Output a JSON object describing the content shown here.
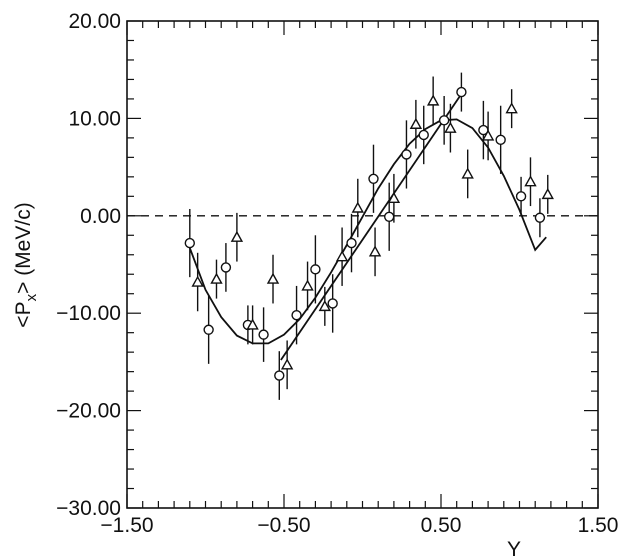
{
  "chart_data": {
    "type": "scatter",
    "title": "",
    "xlabel": "Y",
    "ylabel": "<P",
    "ylabel_sub": "x",
    "ylabel_tail": "> (MeV/c)",
    "xlim": [
      -1.5,
      1.5
    ],
    "ylim": [
      -30,
      20
    ],
    "x_ticks": [
      -1.5,
      -0.5,
      0.5,
      1.5
    ],
    "x_tick_labels": [
      "-1.50",
      "-0.50",
      "0.50",
      "1.50"
    ],
    "y_ticks": [
      -30,
      -20,
      -10,
      0,
      10,
      20
    ],
    "y_tick_labels": [
      "-30.00",
      "-20.00",
      "-10.00",
      "0.00",
      "10.00",
      "20.00"
    ],
    "x_minor_step": 0.1,
    "y_minor_step": 2,
    "reference_line": {
      "y": 0,
      "style": "dashed"
    },
    "grid": false,
    "series": [
      {
        "marker": "circle",
        "points": [
          {
            "x": -1.1,
            "y": -2.8,
            "err": 3.5
          },
          {
            "x": -0.98,
            "y": -11.7,
            "err": 3.5
          },
          {
            "x": -0.87,
            "y": -5.3,
            "err": 2.5
          },
          {
            "x": -0.73,
            "y": -11.2,
            "err": 2.0
          },
          {
            "x": -0.63,
            "y": -12.2,
            "err": 2.8
          },
          {
            "x": -0.53,
            "y": -16.4,
            "err": 2.5
          },
          {
            "x": -0.42,
            "y": -10.2,
            "err": 3.0
          },
          {
            "x": -0.3,
            "y": -5.5,
            "err": 3.5
          },
          {
            "x": -0.19,
            "y": -9.0,
            "err": 3.0
          },
          {
            "x": -0.07,
            "y": -2.8,
            "err": 3.0
          },
          {
            "x": 0.07,
            "y": 3.8,
            "err": 3.5
          },
          {
            "x": 0.17,
            "y": -0.1,
            "err": 3.5
          },
          {
            "x": 0.28,
            "y": 6.3,
            "err": 3.5
          },
          {
            "x": 0.39,
            "y": 8.3,
            "err": 3.0
          },
          {
            "x": 0.52,
            "y": 9.8,
            "err": 2.5
          },
          {
            "x": 0.63,
            "y": 12.7,
            "err": 2.0
          },
          {
            "x": 0.77,
            "y": 8.8,
            "err": 3.0
          },
          {
            "x": 0.88,
            "y": 7.8,
            "err": 3.5
          },
          {
            "x": 1.01,
            "y": 2.0,
            "err": 2.0
          },
          {
            "x": 1.13,
            "y": -0.2,
            "err": 2.0
          }
        ]
      },
      {
        "marker": "triangle",
        "points": [
          {
            "x": -1.05,
            "y": -6.8,
            "err": 3.0
          },
          {
            "x": -0.93,
            "y": -6.5,
            "err": 2.0
          },
          {
            "x": -0.8,
            "y": -2.2,
            "err": 2.5
          },
          {
            "x": -0.7,
            "y": -11.2,
            "err": 2.0
          },
          {
            "x": -0.57,
            "y": -6.5,
            "err": 2.5
          },
          {
            "x": -0.48,
            "y": -15.3,
            "err": 2.5
          },
          {
            "x": -0.35,
            "y": -7.2,
            "err": 2.5
          },
          {
            "x": -0.24,
            "y": -9.3,
            "err": 2.0
          },
          {
            "x": -0.13,
            "y": -4.2,
            "err": 3.0
          },
          {
            "x": -0.03,
            "y": 0.8,
            "err": 3.0
          },
          {
            "x": 0.08,
            "y": -3.7,
            "err": 2.5
          },
          {
            "x": 0.2,
            "y": 1.8,
            "err": 2.5
          },
          {
            "x": 0.34,
            "y": 9.4,
            "err": 2.5
          },
          {
            "x": 0.45,
            "y": 11.8,
            "err": 2.5
          },
          {
            "x": 0.56,
            "y": 9.0,
            "err": 2.5
          },
          {
            "x": 0.67,
            "y": 4.3,
            "err": 2.5
          },
          {
            "x": 0.8,
            "y": 8.2,
            "err": 2.5
          },
          {
            "x": 0.95,
            "y": 11.0,
            "err": 2.0
          },
          {
            "x": 1.07,
            "y": 3.5,
            "err": 2.5
          },
          {
            "x": 1.18,
            "y": 2.2,
            "err": 2.0
          }
        ]
      }
    ],
    "fits": [
      {
        "kind": "polynomial",
        "x": [
          -1.1,
          -1.0,
          -0.9,
          -0.8,
          -0.7,
          -0.6,
          -0.5,
          -0.4,
          -0.3,
          -0.2,
          -0.1,
          0.0,
          0.1,
          0.2,
          0.3,
          0.4,
          0.5,
          0.6,
          0.7,
          0.8,
          0.9,
          1.0,
          1.1,
          1.17
        ],
        "y": [
          -3.3,
          -7.6,
          -10.4,
          -12.3,
          -13.1,
          -13.1,
          -12.2,
          -10.6,
          -8.4,
          -5.8,
          -3.0,
          -0.1,
          2.8,
          5.3,
          7.4,
          8.9,
          9.8,
          9.9,
          9.0,
          7.0,
          4.1,
          0.6,
          -3.5,
          -2.2
        ]
      },
      {
        "kind": "linear",
        "x": [
          -0.52,
          0.65
        ],
        "y": [
          -14.8,
          13.0
        ]
      }
    ]
  }
}
